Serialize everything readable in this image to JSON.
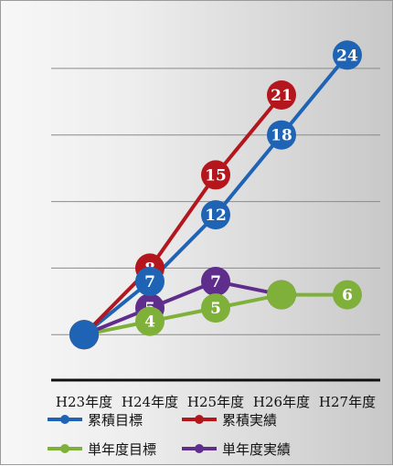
{
  "chart_data": {
    "type": "line",
    "categories": [
      "H23年度",
      "H24年度",
      "H25年度",
      "H26年度",
      "H27年度"
    ],
    "ylim": [
      0,
      27
    ],
    "grid": true,
    "legend_position": "bottom",
    "series": [
      {
        "name": "累積目標",
        "color": "#1f63b5",
        "values": [
          3,
          7,
          12,
          18,
          24
        ]
      },
      {
        "name": "累積実績",
        "color": "#b3171d",
        "values": [
          3,
          8,
          15,
          21,
          null
        ]
      },
      {
        "name": "単年度目標",
        "color": "#7fb13a",
        "values": [
          3,
          4,
          5,
          6,
          6
        ]
      },
      {
        "name": "単年度実績",
        "color": "#5f2e8c",
        "values": [
          3,
          5,
          7,
          6,
          null
        ]
      }
    ]
  }
}
